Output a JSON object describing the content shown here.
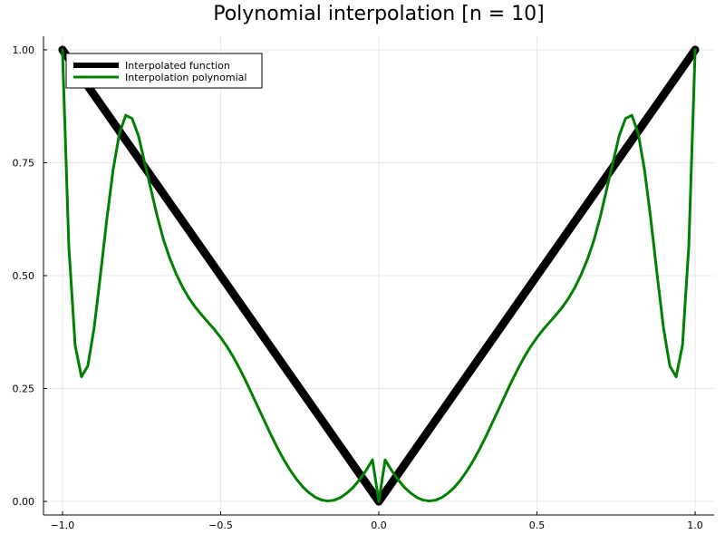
{
  "chart_data": {
    "type": "line",
    "title": "Polynomial interpolation [n = 10]",
    "xlabel": "",
    "ylabel": "",
    "xlim": [
      -1.06,
      1.06
    ],
    "ylim": [
      -0.03,
      1.03
    ],
    "grid": true,
    "legend_position": "top-left",
    "xticks": [
      {
        "value": -1.0,
        "label": "−1.0"
      },
      {
        "value": -0.5,
        "label": "−0.5"
      },
      {
        "value": 0.0,
        "label": "0.0"
      },
      {
        "value": 0.5,
        "label": "0.5"
      },
      {
        "value": 1.0,
        "label": "1.0"
      }
    ],
    "yticks": [
      {
        "value": 0.0,
        "label": "0.00"
      },
      {
        "value": 0.25,
        "label": "0.25"
      },
      {
        "value": 0.5,
        "label": "0.50"
      },
      {
        "value": 0.75,
        "label": "0.75"
      },
      {
        "value": 1.0,
        "label": "1.00"
      }
    ],
    "series": [
      {
        "name": "Interpolated function",
        "color": "#000000",
        "x": [
          -1.0,
          0.0,
          1.0
        ],
        "y": [
          1.0,
          0.0,
          1.0
        ]
      },
      {
        "name": "Interpolation polynomial",
        "color": "#008000",
        "x": [
          -1.0,
          -0.98,
          -0.96,
          -0.94,
          -0.92,
          -0.9,
          -0.88,
          -0.86,
          -0.84,
          -0.82,
          -0.8,
          -0.78,
          -0.76,
          -0.74,
          -0.72,
          -0.7,
          -0.68,
          -0.66,
          -0.64,
          -0.62,
          -0.6,
          -0.58,
          -0.56,
          -0.54,
          -0.52,
          -0.5,
          -0.48,
          -0.46,
          -0.44,
          -0.42,
          -0.4,
          -0.38,
          -0.36,
          -0.34,
          -0.32,
          -0.3,
          -0.28,
          -0.26,
          -0.24,
          -0.22,
          -0.2,
          -0.18,
          -0.16,
          -0.14,
          -0.12,
          -0.1,
          -0.08,
          -0.06,
          -0.04,
          -0.02,
          0.0,
          0.02,
          0.04,
          0.06,
          0.08,
          0.1,
          0.12,
          0.14,
          0.16,
          0.18,
          0.2,
          0.22,
          0.24,
          0.26,
          0.28,
          0.3,
          0.32,
          0.34,
          0.36,
          0.38,
          0.4,
          0.42,
          0.44,
          0.46,
          0.48,
          0.5,
          0.52,
          0.54,
          0.56,
          0.58,
          0.6,
          0.62,
          0.64,
          0.66,
          0.68,
          0.7,
          0.72,
          0.74,
          0.76,
          0.78,
          0.8,
          0.82,
          0.84,
          0.86,
          0.88,
          0.9,
          0.92,
          0.94,
          0.96,
          0.98,
          1.0
        ],
        "y": [
          1.0,
          0.566,
          0.346,
          0.276,
          0.3,
          0.384,
          0.501,
          0.624,
          0.734,
          0.815,
          0.855,
          0.848,
          0.81,
          0.75,
          0.69,
          0.63,
          0.578,
          0.537,
          0.503,
          0.474,
          0.45,
          0.43,
          0.413,
          0.397,
          0.381,
          0.363,
          0.343,
          0.32,
          0.294,
          0.266,
          0.236,
          0.206,
          0.176,
          0.146,
          0.118,
          0.092,
          0.069,
          0.049,
          0.032,
          0.019,
          0.009,
          0.003,
          0.001,
          0.003,
          0.009,
          0.019,
          0.032,
          0.049,
          0.069,
          0.092,
          0.0,
          0.092,
          0.069,
          0.049,
          0.032,
          0.019,
          0.009,
          0.003,
          0.001,
          0.003,
          0.009,
          0.019,
          0.032,
          0.049,
          0.069,
          0.092,
          0.118,
          0.146,
          0.176,
          0.206,
          0.236,
          0.266,
          0.294,
          0.32,
          0.343,
          0.363,
          0.381,
          0.397,
          0.413,
          0.43,
          0.45,
          0.474,
          0.503,
          0.537,
          0.578,
          0.63,
          0.69,
          0.75,
          0.81,
          0.848,
          0.855,
          0.815,
          0.734,
          0.624,
          0.501,
          0.384,
          0.3,
          0.276,
          0.346,
          0.566,
          1.0
        ]
      }
    ]
  }
}
